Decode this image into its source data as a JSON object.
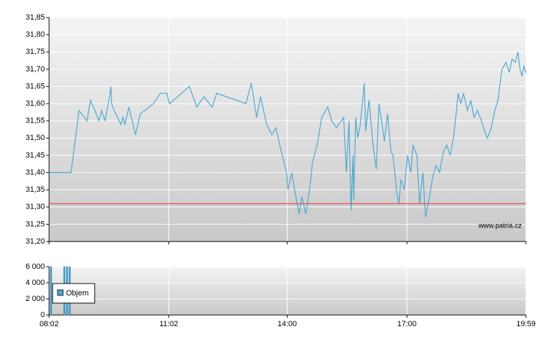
{
  "chart_data": [
    {
      "type": "line",
      "x": [
        "08:02",
        "08:35",
        "08:47",
        "08:59",
        "09:04",
        "09:11",
        "09:17",
        "09:21",
        "09:26",
        "09:33",
        "09:35",
        "09:36",
        "09:40",
        "09:45",
        "09:50",
        "09:53",
        "09:56",
        "10:02",
        "10:07",
        "10:12",
        "10:19",
        "10:39",
        "10:49",
        "10:59",
        "11:03",
        "11:33",
        "11:44",
        "11:55",
        "12:07",
        "12:14",
        "12:58",
        "13:06",
        "13:14",
        "13:20",
        "13:29",
        "13:37",
        "13:43",
        "13:50",
        "13:59",
        "14:01",
        "14:07",
        "14:12",
        "14:18",
        "14:22",
        "14:28",
        "14:35",
        "14:38",
        "14:45",
        "14:52",
        "15:01",
        "15:07",
        "15:14",
        "15:25",
        "15:29",
        "15:33",
        "15:36",
        "15:39",
        "15:40",
        "15:43",
        "15:46",
        "15:50",
        "15:56",
        "15:58",
        "16:03",
        "16:09",
        "16:14",
        "16:18",
        "16:22",
        "16:26",
        "16:31",
        "16:36",
        "16:39",
        "16:45",
        "16:48",
        "16:51",
        "16:56",
        "17:01",
        "17:06",
        "17:09",
        "17:15",
        "17:19",
        "17:24",
        "17:28",
        "17:34",
        "17:39",
        "17:44",
        "17:49",
        "17:55",
        "18:00",
        "18:05",
        "18:10",
        "18:14",
        "18:17",
        "18:21",
        "18:25",
        "18:31",
        "18:36",
        "18:41",
        "18:46",
        "18:52",
        "18:57",
        "19:01",
        "19:07",
        "19:12",
        "19:17",
        "19:20",
        "19:23",
        "19:29",
        "19:34",
        "19:38",
        "19:43",
        "19:47",
        "19:50",
        "19:53",
        "19:56",
        "19:59"
      ],
      "values": [
        31.4,
        31.4,
        31.58,
        31.55,
        31.61,
        31.58,
        31.55,
        31.58,
        31.55,
        31.62,
        31.65,
        31.6,
        31.58,
        31.56,
        31.54,
        31.56,
        31.54,
        31.59,
        31.55,
        31.51,
        31.57,
        31.6,
        31.63,
        31.63,
        31.6,
        31.65,
        31.59,
        31.62,
        31.59,
        31.63,
        31.6,
        31.66,
        31.56,
        31.62,
        31.54,
        31.51,
        31.53,
        31.47,
        31.4,
        31.35,
        31.4,
        31.34,
        31.28,
        31.33,
        31.28,
        31.37,
        31.43,
        31.48,
        31.56,
        31.59,
        31.55,
        31.53,
        31.56,
        31.4,
        31.55,
        31.29,
        31.45,
        31.32,
        31.56,
        31.5,
        31.54,
        31.66,
        31.52,
        31.61,
        31.48,
        31.41,
        31.6,
        31.55,
        31.49,
        31.57,
        31.46,
        31.45,
        31.34,
        31.31,
        31.38,
        31.35,
        31.45,
        31.4,
        31.48,
        31.45,
        31.31,
        31.4,
        31.27,
        31.33,
        31.39,
        31.42,
        31.4,
        31.46,
        31.48,
        31.45,
        31.5,
        31.57,
        31.63,
        31.6,
        31.63,
        31.58,
        31.61,
        31.56,
        31.58,
        31.55,
        31.52,
        31.5,
        31.53,
        31.58,
        31.61,
        31.66,
        31.7,
        31.72,
        31.69,
        31.73,
        31.72,
        31.75,
        31.7,
        31.68,
        31.71,
        31.69
      ],
      "color": "#4aa8d0",
      "xlim": [
        "08:02",
        "19:59"
      ],
      "ylim": [
        31.2,
        31.85
      ],
      "yticks": [
        {
          "value": 31.2,
          "label": "31,20"
        },
        {
          "value": 31.25,
          "label": "31,25"
        },
        {
          "value": 31.3,
          "label": "31,30"
        },
        {
          "value": 31.35,
          "label": "31,35"
        },
        {
          "value": 31.4,
          "label": "31,40"
        },
        {
          "value": 31.45,
          "label": "31,45"
        },
        {
          "value": 31.5,
          "label": "31,50"
        },
        {
          "value": 31.55,
          "label": "31,55"
        },
        {
          "value": 31.6,
          "label": "31,60"
        },
        {
          "value": 31.65,
          "label": "31,65"
        },
        {
          "value": 31.7,
          "label": "31,70"
        },
        {
          "value": 31.75,
          "label": "31,75"
        },
        {
          "value": 31.8,
          "label": "31,80"
        },
        {
          "value": 31.85,
          "label": "31,85"
        }
      ],
      "reference_line": {
        "value": 31.31,
        "color": "#e03030"
      },
      "watermark": "www.patria.cz",
      "grid": true
    },
    {
      "type": "bar",
      "x": [
        "08:05",
        "08:25",
        "08:29",
        "08:33"
      ],
      "series": [
        {
          "name": "Objem",
          "color": "#4aa8d0",
          "values": [
            6000,
            6000,
            6000,
            6000
          ]
        }
      ],
      "xlim": [
        "08:02",
        "19:59"
      ],
      "xticks": [
        "08:02",
        "11:02",
        "14:00",
        "17:00",
        "19:59"
      ],
      "ylim": [
        0,
        6000
      ],
      "yticks": [
        {
          "value": 0,
          "label": "0"
        },
        {
          "value": 2000,
          "label": "2 000"
        },
        {
          "value": 4000,
          "label": "4 000"
        },
        {
          "value": 6000,
          "label": "6 000"
        }
      ],
      "grid": true
    }
  ]
}
